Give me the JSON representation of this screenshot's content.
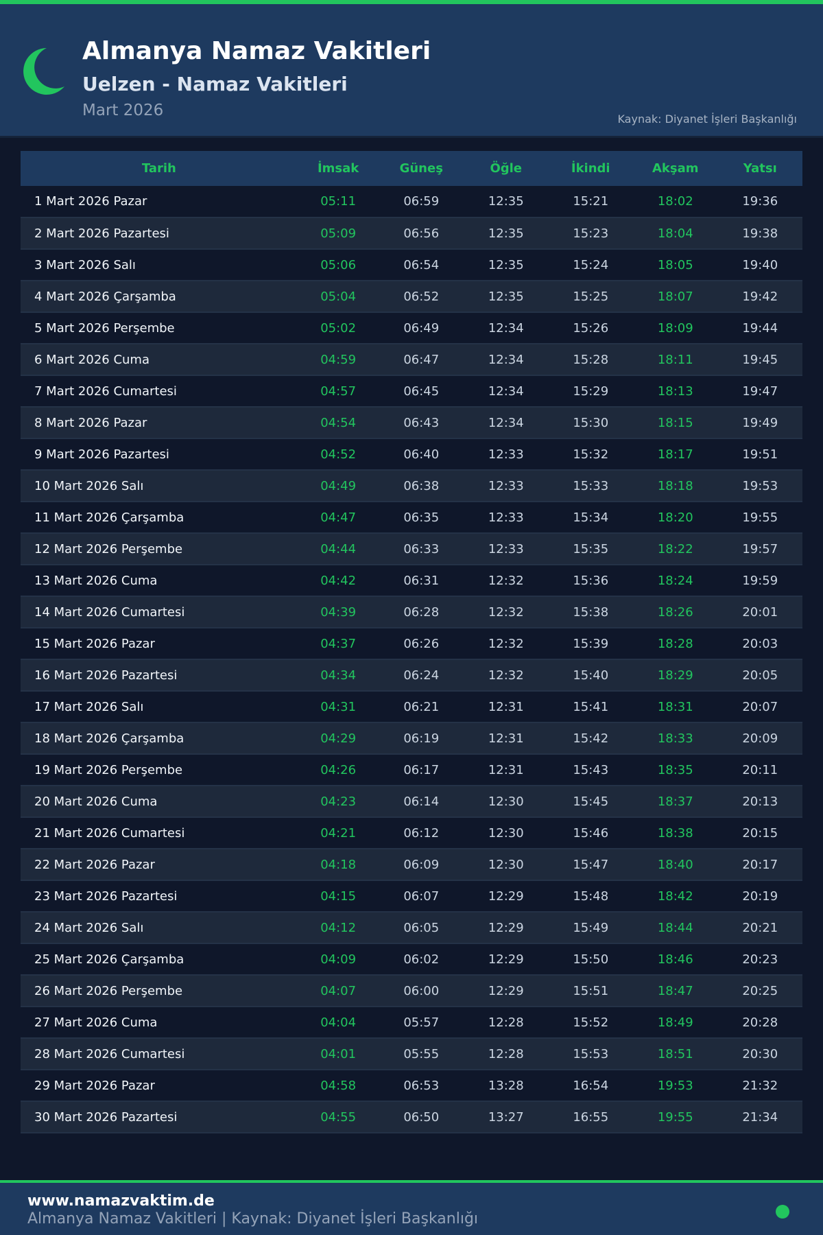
{
  "header": {
    "title": "Almanya Namaz Vakitleri",
    "subtitle": "Uelzen - Namaz Vakitleri",
    "month": "Mart 2026",
    "source": "Kaynak: Diyanet İşleri Başkanlığı",
    "icon": "crescent-moon-icon"
  },
  "colors": {
    "accent": "#22c55e",
    "header_bg": "#1e3a5f",
    "page_bg": "#0f172a"
  },
  "table": {
    "columns": [
      "Tarih",
      "İmsak",
      "Güneş",
      "Öğle",
      "İkindi",
      "Akşam",
      "Yatsı"
    ],
    "rows": [
      [
        "1 Mart 2026 Pazar",
        "05:11",
        "06:59",
        "12:35",
        "15:21",
        "18:02",
        "19:36"
      ],
      [
        "2 Mart 2026 Pazartesi",
        "05:09",
        "06:56",
        "12:35",
        "15:23",
        "18:04",
        "19:38"
      ],
      [
        "3 Mart 2026 Salı",
        "05:06",
        "06:54",
        "12:35",
        "15:24",
        "18:05",
        "19:40"
      ],
      [
        "4 Mart 2026 Çarşamba",
        "05:04",
        "06:52",
        "12:35",
        "15:25",
        "18:07",
        "19:42"
      ],
      [
        "5 Mart 2026 Perşembe",
        "05:02",
        "06:49",
        "12:34",
        "15:26",
        "18:09",
        "19:44"
      ],
      [
        "6 Mart 2026 Cuma",
        "04:59",
        "06:47",
        "12:34",
        "15:28",
        "18:11",
        "19:45"
      ],
      [
        "7 Mart 2026 Cumartesi",
        "04:57",
        "06:45",
        "12:34",
        "15:29",
        "18:13",
        "19:47"
      ],
      [
        "8 Mart 2026 Pazar",
        "04:54",
        "06:43",
        "12:34",
        "15:30",
        "18:15",
        "19:49"
      ],
      [
        "9 Mart 2026 Pazartesi",
        "04:52",
        "06:40",
        "12:33",
        "15:32",
        "18:17",
        "19:51"
      ],
      [
        "10 Mart 2026 Salı",
        "04:49",
        "06:38",
        "12:33",
        "15:33",
        "18:18",
        "19:53"
      ],
      [
        "11 Mart 2026 Çarşamba",
        "04:47",
        "06:35",
        "12:33",
        "15:34",
        "18:20",
        "19:55"
      ],
      [
        "12 Mart 2026 Perşembe",
        "04:44",
        "06:33",
        "12:33",
        "15:35",
        "18:22",
        "19:57"
      ],
      [
        "13 Mart 2026 Cuma",
        "04:42",
        "06:31",
        "12:32",
        "15:36",
        "18:24",
        "19:59"
      ],
      [
        "14 Mart 2026 Cumartesi",
        "04:39",
        "06:28",
        "12:32",
        "15:38",
        "18:26",
        "20:01"
      ],
      [
        "15 Mart 2026 Pazar",
        "04:37",
        "06:26",
        "12:32",
        "15:39",
        "18:28",
        "20:03"
      ],
      [
        "16 Mart 2026 Pazartesi",
        "04:34",
        "06:24",
        "12:32",
        "15:40",
        "18:29",
        "20:05"
      ],
      [
        "17 Mart 2026 Salı",
        "04:31",
        "06:21",
        "12:31",
        "15:41",
        "18:31",
        "20:07"
      ],
      [
        "18 Mart 2026 Çarşamba",
        "04:29",
        "06:19",
        "12:31",
        "15:42",
        "18:33",
        "20:09"
      ],
      [
        "19 Mart 2026 Perşembe",
        "04:26",
        "06:17",
        "12:31",
        "15:43",
        "18:35",
        "20:11"
      ],
      [
        "20 Mart 2026 Cuma",
        "04:23",
        "06:14",
        "12:30",
        "15:45",
        "18:37",
        "20:13"
      ],
      [
        "21 Mart 2026 Cumartesi",
        "04:21",
        "06:12",
        "12:30",
        "15:46",
        "18:38",
        "20:15"
      ],
      [
        "22 Mart 2026 Pazar",
        "04:18",
        "06:09",
        "12:30",
        "15:47",
        "18:40",
        "20:17"
      ],
      [
        "23 Mart 2026 Pazartesi",
        "04:15",
        "06:07",
        "12:29",
        "15:48",
        "18:42",
        "20:19"
      ],
      [
        "24 Mart 2026 Salı",
        "04:12",
        "06:05",
        "12:29",
        "15:49",
        "18:44",
        "20:21"
      ],
      [
        "25 Mart 2026 Çarşamba",
        "04:09",
        "06:02",
        "12:29",
        "15:50",
        "18:46",
        "20:23"
      ],
      [
        "26 Mart 2026 Perşembe",
        "04:07",
        "06:00",
        "12:29",
        "15:51",
        "18:47",
        "20:25"
      ],
      [
        "27 Mart 2026 Cuma",
        "04:04",
        "05:57",
        "12:28",
        "15:52",
        "18:49",
        "20:28"
      ],
      [
        "28 Mart 2026 Cumartesi",
        "04:01",
        "05:55",
        "12:28",
        "15:53",
        "18:51",
        "20:30"
      ],
      [
        "29 Mart 2026 Pazar",
        "04:58",
        "06:53",
        "13:28",
        "16:54",
        "19:53",
        "21:32"
      ],
      [
        "30 Mart 2026 Pazartesi",
        "04:55",
        "06:50",
        "13:27",
        "16:55",
        "19:55",
        "21:34"
      ]
    ]
  },
  "footer": {
    "site": "www.namazvaktim.de",
    "text": "Almanya Namaz Vakitleri | Kaynak: Diyanet İşleri Başkanlığı"
  }
}
